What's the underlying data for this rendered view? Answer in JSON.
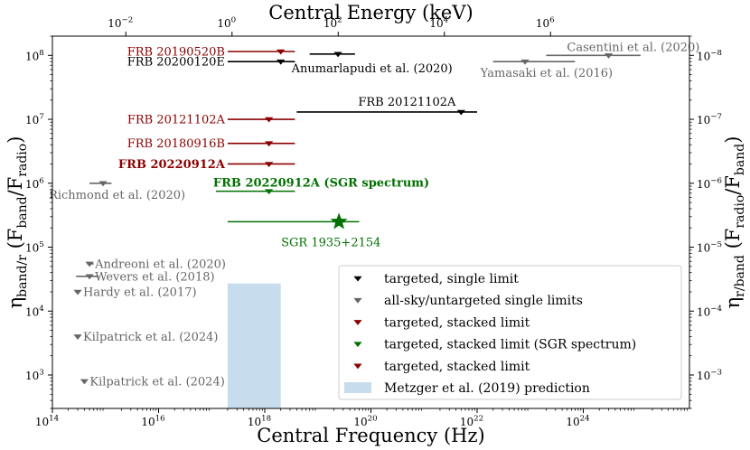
{
  "chart_data": {
    "type": "scatter",
    "x_bottom": {
      "label": "Central Frequency (Hz)",
      "scale": "log",
      "range": [
        100000000000000.0,
        1e+26
      ],
      "ticks": [
        {
          "v": 100000000000000.0,
          "t": "10",
          "e": "14"
        },
        {
          "v": 1e+16,
          "t": "10",
          "e": "16"
        },
        {
          "v": 1e+18,
          "t": "10",
          "e": "18"
        },
        {
          "v": 1e+20,
          "t": "10",
          "e": "20"
        },
        {
          "v": 1e+22,
          "t": "10",
          "e": "22"
        },
        {
          "v": 1e+24,
          "t": "10",
          "e": "24"
        }
      ]
    },
    "x_top": {
      "label": "Central Energy (keV)",
      "scale": "log",
      "ticks": [
        {
          "keV": 0.01,
          "t": "10",
          "e": "−2"
        },
        {
          "keV": 1,
          "t": "10",
          "e": "0"
        },
        {
          "keV": 100,
          "t": "10",
          "e": "2"
        },
        {
          "keV": 10000,
          "t": "10",
          "e": "4"
        },
        {
          "keV": 1000000,
          "t": "10",
          "e": "6"
        }
      ]
    },
    "y_left": {
      "label_main": "η",
      "label_sub": "band/r",
      "label_paren": "(F",
      "label_sub2": "band",
      "label_mid": "/F",
      "label_sub3": "radio",
      "label_end": ")",
      "scale": "log",
      "range": [
        300,
        200000000.0
      ],
      "ticks": [
        {
          "v": 1000,
          "t": "10",
          "e": "3"
        },
        {
          "v": 10000,
          "t": "10",
          "e": "4"
        },
        {
          "v": 100000,
          "t": "10",
          "e": "5"
        },
        {
          "v": 1000000,
          "t": "10",
          "e": "6"
        },
        {
          "v": 10000000,
          "t": "10",
          "e": "7"
        },
        {
          "v": 100000000,
          "t": "10",
          "e": "8"
        }
      ]
    },
    "y_right": {
      "label_main": "η",
      "label_sub": "r/band",
      "label_paren": "(F",
      "label_sub2": "radio",
      "label_mid": "/F",
      "label_sub3": "band",
      "label_end": ")",
      "ticks": [
        {
          "v": 1000,
          "t": "10",
          "e": "−3"
        },
        {
          "v": 10000,
          "t": "10",
          "e": "−4"
        },
        {
          "v": 100000,
          "t": "10",
          "e": "−5"
        },
        {
          "v": 1000000,
          "t": "10",
          "e": "−6"
        },
        {
          "v": 10000000,
          "t": "10",
          "e": "−7"
        },
        {
          "v": 100000000,
          "t": "10",
          "e": "−8"
        }
      ]
    },
    "colors": {
      "black": "#000000",
      "gray": "#666666",
      "darkred": "#8b0000",
      "green": "#007000",
      "band": "#c7dded"
    },
    "points": [
      {
        "label": "FRB 20190520B",
        "x": 2e+18,
        "xlo": 2e+17,
        "xhi": 3.7e+18,
        "y": 115000000.0,
        "color": "darkred",
        "marker": "tri",
        "label_side": "left",
        "bold": false
      },
      {
        "label": "FRB 20200120E",
        "x": 2e+18,
        "xlo": 2e+17,
        "xhi": 3.7e+18,
        "y": 80000000.0,
        "color": "black",
        "marker": "tri",
        "label_side": "left",
        "bold": false
      },
      {
        "label": "Anumarlapudi et al. (2020)",
        "x": 2.4e+19,
        "xlo": 7e+18,
        "xhi": 5e+19,
        "y": 105000000.0,
        "color": "black",
        "marker": "tri",
        "label_side": "below",
        "bold": false
      },
      {
        "label": "Casentini et al. (2020)",
        "x": 3e+24,
        "xlo": 2e+23,
        "xhi": 1.2e+25,
        "y": 100000000.0,
        "color": "gray",
        "marker": "tri",
        "label_side": "above",
        "bold": false
      },
      {
        "label": "Yamasaki et al. (2016)",
        "x": 8e+22,
        "xlo": 2e+22,
        "xhi": 7e+23,
        "y": 80000000.0,
        "color": "gray",
        "marker": "tri",
        "label_side": "below",
        "bold": false
      },
      {
        "label": "FRB 20121102A",
        "x": 1.2e+18,
        "xlo": 2e+17,
        "xhi": 3.7e+18,
        "y": 10000000.0,
        "color": "darkred",
        "marker": "tri",
        "label_side": "left",
        "bold": false
      },
      {
        "label": "FRB 20121102A",
        "x": 5e+21,
        "xlo": 4e+18,
        "xhi": 1e+22,
        "y": 13000000.0,
        "color": "black",
        "marker": "tri",
        "label_side": "above",
        "bold": false
      },
      {
        "label": "FRB 20180916B",
        "x": 1.2e+18,
        "xlo": 2e+17,
        "xhi": 3.7e+18,
        "y": 4200000.0,
        "color": "darkred",
        "marker": "tri",
        "label_side": "left",
        "bold": false
      },
      {
        "label": "FRB 20220912A",
        "x": 1.2e+18,
        "xlo": 2e+17,
        "xhi": 3.7e+18,
        "y": 2000000.0,
        "color": "darkred",
        "marker": "tri",
        "label_side": "left",
        "bold": true
      },
      {
        "label": "FRB 20220912A (SGR spectrum)",
        "x": 1.2e+18,
        "xlo": 1.2e+17,
        "xhi": 3.7e+18,
        "y": 750000.0,
        "color": "green",
        "marker": "tri",
        "label_side": "above",
        "bold": true
      },
      {
        "label": "SGR 1935+2154",
        "x": 2.5e+19,
        "xlo": 2e+17,
        "xhi": 6e+19,
        "y": 250000.0,
        "color": "green",
        "marker": "star",
        "label_side": "below",
        "bold": false
      },
      {
        "label": "Richmond et al. (2020)",
        "x": 900000000000000.0,
        "xlo": 500000000000000.0,
        "xhi": 1300000000000000.0,
        "y": 1000000.0,
        "color": "gray",
        "marker": "tri",
        "label_side": "below",
        "bold": false
      },
      {
        "label": "Andreoni et al. (2020)",
        "x": 500000000000000.0,
        "xlo": 450000000000000.0,
        "xhi": 600000000000000.0,
        "y": 55000.0,
        "color": "gray",
        "marker": "tri",
        "label_side": "right",
        "bold": false
      },
      {
        "label": "Wevers et al. (2018)",
        "x": 500000000000000.0,
        "xlo": 280000000000000.0,
        "xhi": 750000000000000.0,
        "y": 35000.0,
        "color": "gray",
        "marker": "tri",
        "label_side": "right",
        "bold": false
      },
      {
        "label": "Hardy et al. (2017)",
        "x": 300000000000000.0,
        "xlo": 270000000000000.0,
        "xhi": 330000000000000.0,
        "y": 20000.0,
        "color": "gray",
        "marker": "tri",
        "label_side": "right",
        "bold": false
      },
      {
        "label": "Kilpatrick et al. (2024)",
        "x": 300000000000000.0,
        "xlo": null,
        "xhi": null,
        "y": 4000.0,
        "color": "gray",
        "marker": "tri",
        "label_side": "right",
        "bold": false
      },
      {
        "label": "Kilpatrick et al. (2024)",
        "x": 400000000000000.0,
        "xlo": null,
        "xhi": null,
        "y": 800,
        "color": "gray",
        "marker": "tri",
        "label_side": "right",
        "bold": false
      }
    ],
    "prediction_band": {
      "x_from": 2e+17,
      "x_to": 2e+18,
      "y_from": 300,
      "y_to": 27000.0,
      "color": "band"
    },
    "legend": {
      "placement": "lower right",
      "items": [
        {
          "label": "targeted, single limit",
          "color": "black",
          "marker": "tri"
        },
        {
          "label": "all-sky/untargeted single limits",
          "color": "gray",
          "marker": "tri"
        },
        {
          "label": "targeted, stacked limit",
          "color": "darkred",
          "marker": "tri"
        },
        {
          "label": "targeted, stacked limit (SGR spectrum)",
          "color": "green",
          "marker": "tri"
        },
        {
          "label": "targeted, stacked limit",
          "color": "darkred",
          "marker": "tri"
        },
        {
          "label": "Metzger et al. (2019) prediction",
          "color": "band",
          "marker": "patch"
        }
      ]
    }
  }
}
